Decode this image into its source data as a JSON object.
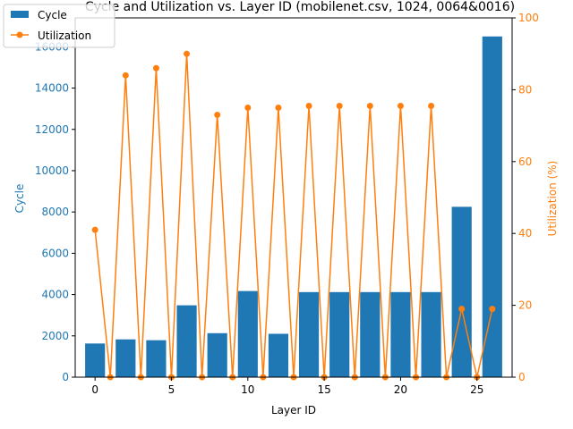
{
  "chart_data": {
    "type": "bar+line",
    "title": "Cycle and Utilization vs. Layer ID (mobilenet.csv, 1024, 0064&0016)",
    "xlabel": "Layer ID",
    "ylabel_left": "Cycle",
    "ylabel_right": "Utilization (%)",
    "xlim": [
      -1.3,
      27.3
    ],
    "ylim_left": [
      0,
      17400
    ],
    "ylim_right": [
      0,
      100
    ],
    "x_ticks": [
      0,
      5,
      10,
      15,
      20,
      25
    ],
    "y_left_ticks": [
      0,
      2000,
      4000,
      6000,
      8000,
      10000,
      12000,
      14000,
      16000
    ],
    "y_right_ticks": [
      0,
      20,
      40,
      60,
      80,
      100
    ],
    "legend_position": "top-left",
    "colors": {
      "cycle": "#1f77b4",
      "utilization": "#ff7f0e",
      "axis": "#000000"
    },
    "series": [
      {
        "name": "Cycle",
        "kind": "bar",
        "axis": "left",
        "x": [
          0,
          2,
          4,
          6,
          8,
          10,
          12,
          14,
          16,
          18,
          20,
          22,
          24,
          26
        ],
        "values": [
          1630,
          1830,
          1790,
          3480,
          2130,
          4170,
          2100,
          4120,
          4120,
          4120,
          4120,
          4120,
          8250,
          16500
        ]
      },
      {
        "name": "Utilization",
        "kind": "line",
        "axis": "right",
        "x": [
          0,
          1,
          2,
          3,
          4,
          5,
          6,
          7,
          8,
          9,
          10,
          11,
          12,
          13,
          14,
          15,
          16,
          17,
          18,
          19,
          20,
          21,
          22,
          23,
          24,
          25,
          26
        ],
        "values": [
          41,
          0,
          84,
          0,
          86,
          0,
          90,
          0,
          73,
          0,
          75,
          0,
          75,
          0,
          75.5,
          0,
          75.5,
          0,
          75.5,
          0,
          75.5,
          0,
          75.5,
          0,
          19,
          0,
          19
        ]
      }
    ]
  }
}
